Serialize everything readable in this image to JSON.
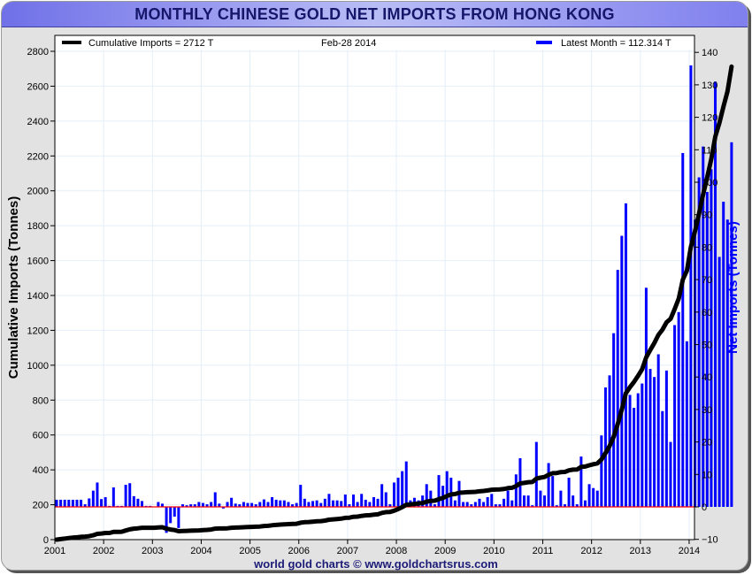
{
  "window": {
    "title": "MONTHLY CHINESE GOLD NET IMPORTS FROM HONG KONG",
    "footer": "world gold charts © www.goldchartsrus.com"
  },
  "legend": {
    "cumulative_label": "Cumulative Imports = 2712 T",
    "date_label": "Feb-28  2014",
    "latest_label": "Latest Month  = 112.314 T"
  },
  "colors": {
    "bars": "#0000ff",
    "line": "#000000",
    "zero_line": "#ff0000",
    "grid": "#e4eef8",
    "title_text": "#16166a",
    "right_axis_label": "#0000ff"
  },
  "chart_data": {
    "type": "bar+line",
    "title": "MONTHLY CHINESE GOLD NET IMPORTS FROM HONG KONG",
    "xlabel": "",
    "ylabel_left": "Cumulative Imports (Tonnes)",
    "ylabel_right": "Net Imports (Tonnes)",
    "ylim_left": [
      0,
      2800
    ],
    "ylim_right": [
      -10,
      140
    ],
    "yticks_left": [
      0,
      200,
      400,
      600,
      800,
      1000,
      1200,
      1400,
      1600,
      1800,
      2000,
      2200,
      2400,
      2600,
      2800
    ],
    "yticks_right": [
      -10,
      0,
      10,
      20,
      30,
      40,
      50,
      60,
      70,
      80,
      90,
      100,
      110,
      120,
      130,
      140
    ],
    "xticks": [
      "2001",
      "2002",
      "2003",
      "2004",
      "2005",
      "2006",
      "2007",
      "2008",
      "2009",
      "2010",
      "2011",
      "2012",
      "2013",
      "2014"
    ],
    "grid": true,
    "legend_position": "top",
    "x_start": "2001-01",
    "x_end": "2014-02",
    "series": [
      {
        "name": "Latest Month (Net Imports, right axis)",
        "type": "bar",
        "axis": "right",
        "values": [
          2.2,
          2.2,
          2.2,
          2.2,
          2.2,
          2.2,
          2.2,
          0.8,
          2.6,
          5.0,
          7.5,
          2.4,
          3.0,
          0.3,
          6.0,
          0.3,
          0.3,
          6.8,
          7.3,
          3.3,
          2.5,
          1.8,
          0.3,
          0.3,
          0,
          1.5,
          1.0,
          -8.0,
          -5.0,
          -3.0,
          -6.5,
          0.8,
          0.5,
          0.8,
          0.8,
          1.5,
          1.2,
          0.8,
          1.5,
          4.5,
          1.0,
          -0.5,
          1.5,
          2.8,
          1.0,
          0.8,
          1.5,
          1.2,
          1.2,
          0.8,
          1.5,
          2.3,
          1.5,
          3.0,
          2.2,
          2.0,
          2.0,
          1.5,
          0.8,
          1.2,
          6.8,
          2.5,
          1.5,
          1.8,
          2.0,
          1.2,
          2.5,
          4.0,
          2.0,
          2.0,
          1.8,
          3.8,
          0.8,
          3.8,
          1.5,
          4.0,
          2.2,
          1.5,
          3.0,
          2.5,
          7.0,
          4.5,
          0.8,
          7.5,
          9.0,
          11.0,
          14.0,
          2.0,
          2.8,
          2.0,
          3.5,
          7.0,
          5.0,
          0.8,
          9.8,
          6.5,
          11.0,
          9.0,
          2.0,
          8.0,
          1.5,
          1.5,
          0.8,
          1.5,
          2.5,
          1.5,
          3.0,
          4.0,
          0.8,
          0.8,
          2.5,
          5.0,
          2.0,
          10.0,
          15.0,
          3.5,
          3.5,
          0.5,
          20.0,
          5.0,
          3.5,
          13.5,
          9.5,
          0.5,
          5.0,
          0.8,
          9.0,
          3.5,
          0.8,
          15.5,
          2.0,
          7.0,
          5.8,
          5.0,
          22.0,
          36.8,
          40.5,
          53.5,
          73.0,
          83.5,
          93.5,
          34.5,
          30.5,
          35.0,
          38.0,
          67.5,
          42.5,
          40.0,
          47.0,
          29.5,
          42.0,
          20.0,
          56.0,
          60.0,
          109.0,
          51.0,
          136.0,
          88.5,
          101.5,
          111.0,
          97.0,
          104.0,
          131.0,
          77.0,
          94.0,
          88.5,
          112.314
        ]
      },
      {
        "name": "Cumulative Imports (left axis)",
        "type": "line",
        "axis": "left",
        "values": [
          0,
          3,
          6,
          9,
          11,
          13,
          16,
          17,
          20,
          25,
          33,
          35,
          38,
          38,
          44,
          44,
          45,
          52,
          59,
          63,
          65,
          68,
          68,
          68,
          68,
          70,
          71,
          63,
          58,
          55,
          48,
          49,
          50,
          51,
          52,
          53,
          55,
          56,
          58,
          63,
          64,
          64,
          65,
          68,
          69,
          70,
          71,
          72,
          73,
          74,
          75,
          78,
          79,
          82,
          84,
          86,
          88,
          89,
          90,
          91,
          97,
          100,
          101,
          103,
          105,
          106,
          109,
          114,
          116,
          118,
          120,
          125,
          126,
          131,
          132,
          136,
          139,
          140,
          143,
          145,
          153,
          158,
          159,
          166,
          175,
          186,
          200,
          202,
          205,
          207,
          210,
          217,
          222,
          223,
          232,
          239,
          250,
          259,
          261,
          269,
          270,
          272,
          273,
          274,
          277,
          279,
          282,
          286,
          287,
          288,
          290,
          295,
          297,
          307,
          322,
          325,
          329,
          330,
          350,
          355,
          359,
          372,
          381,
          382,
          387,
          388,
          397,
          401,
          402,
          417,
          419,
          426,
          432,
          437,
          459,
          496,
          536,
          589,
          662,
          745,
          839,
          874,
          904,
          939,
          977,
          1045,
          1087,
          1127,
          1174,
          1204,
          1246,
          1266,
          1322,
          1382,
          1491,
          1542,
          1678,
          1767,
          1868,
          1979,
          2076,
          2180,
          2311,
          2388,
          2482,
          2570,
          2712
        ]
      }
    ]
  }
}
